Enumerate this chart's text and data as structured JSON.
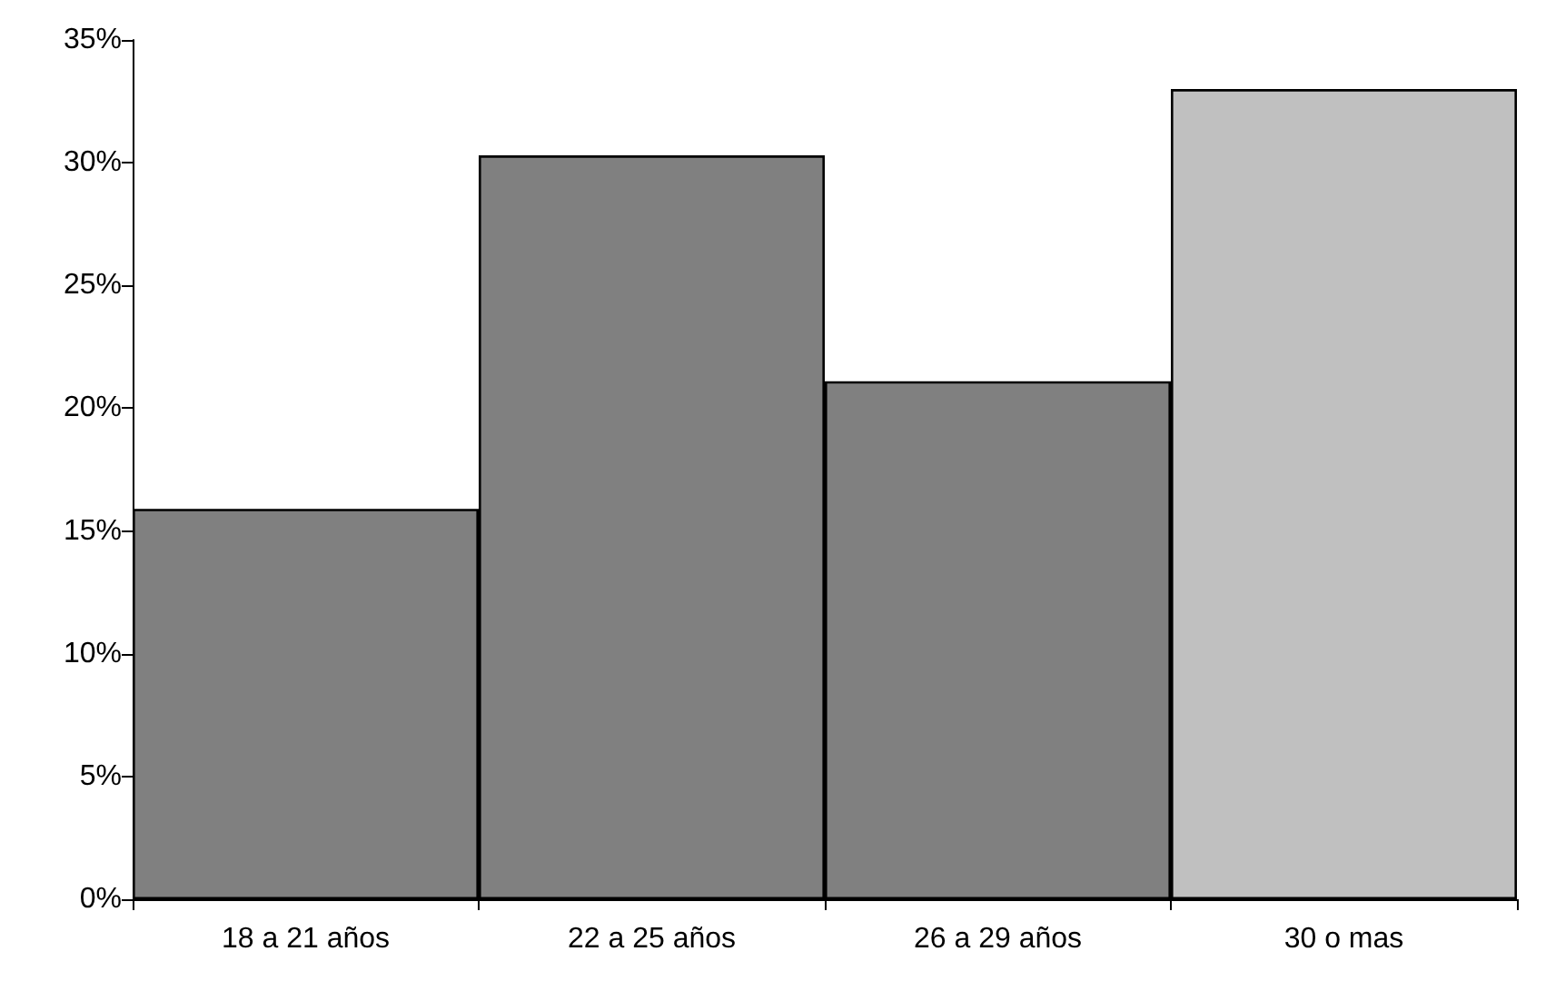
{
  "chart_data": {
    "type": "bar",
    "categories": [
      "18 a 21 años",
      "22 a 25 años",
      "26 a 29 años",
      "30 o mas"
    ],
    "values": [
      15.9,
      30.3,
      21.1,
      33.0
    ],
    "colors": [
      "#808080",
      "#808080",
      "#808080",
      "#c0c0c0"
    ],
    "ylim": [
      0,
      35
    ],
    "yticks": [
      {
        "value": 0,
        "label": "0%"
      },
      {
        "value": 5,
        "label": "5%"
      },
      {
        "value": 10,
        "label": "10%"
      },
      {
        "value": 15,
        "label": "15%"
      },
      {
        "value": 20,
        "label": "20%"
      },
      {
        "value": 25,
        "label": "25%"
      },
      {
        "value": 30,
        "label": "30%"
      },
      {
        "value": 35,
        "label": "35%"
      }
    ],
    "grid": false
  }
}
